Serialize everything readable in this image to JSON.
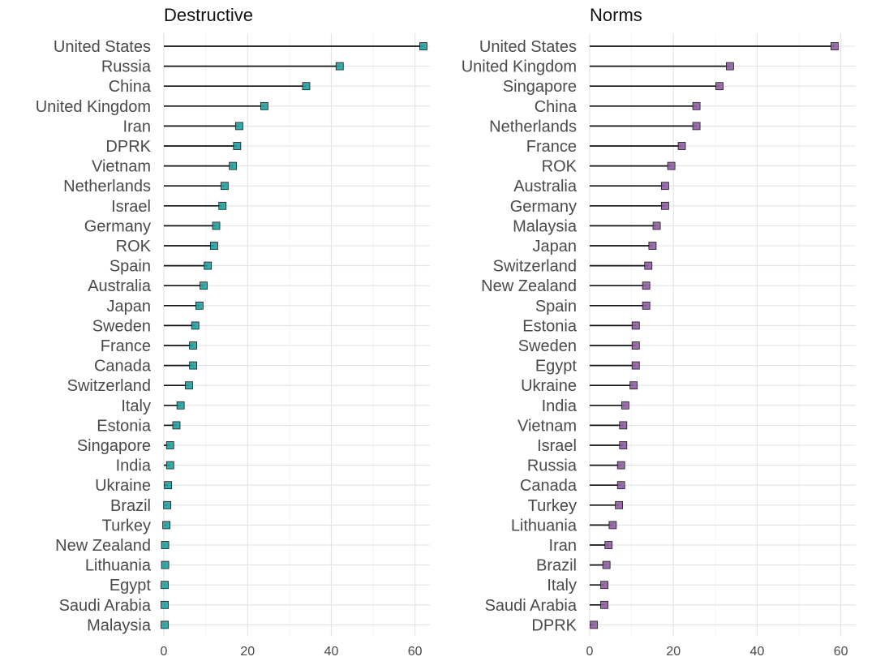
{
  "chart_data": [
    {
      "type": "lollipop",
      "title": "Destructive",
      "xlim": [
        0,
        62
      ],
      "xticks": [
        0,
        20,
        40,
        60
      ],
      "grid": true,
      "point_color": "#21a0a0",
      "categories": [
        "United States",
        "Russia",
        "China",
        "United Kingdom",
        "Iran",
        "DPRK",
        "Vietnam",
        "Netherlands",
        "Israel",
        "Germany",
        "ROK",
        "Spain",
        "Australia",
        "Japan",
        "Sweden",
        "France",
        "Canada",
        "Switzerland",
        "Italy",
        "Estonia",
        "Singapore",
        "India",
        "Ukraine",
        "Brazil",
        "Turkey",
        "New Zealand",
        "Lithuania",
        "Egypt",
        "Saudi Arabia",
        "Malaysia"
      ],
      "values": [
        62,
        42,
        34,
        24,
        18,
        17.5,
        16.5,
        14.5,
        14,
        12.5,
        12,
        10.5,
        9.5,
        8.5,
        7.5,
        7,
        7,
        6,
        4,
        3,
        1.5,
        1.5,
        1,
        0.8,
        0.6,
        0.3,
        0.3,
        0.2,
        0.2,
        0.2
      ]
    },
    {
      "type": "lollipop",
      "title": "Norms",
      "xlim": [
        0,
        62
      ],
      "xticks": [
        0,
        20,
        40,
        60
      ],
      "grid": true,
      "point_color": "#8e5ea2",
      "categories": [
        "United States",
        "United Kingdom",
        "Singapore",
        "China",
        "Netherlands",
        "France",
        "ROK",
        "Australia",
        "Germany",
        "Malaysia",
        "Japan",
        "Switzerland",
        "New Zealand",
        "Spain",
        "Estonia",
        "Sweden",
        "Egypt",
        "Ukraine",
        "India",
        "Vietnam",
        "Israel",
        "Russia",
        "Canada",
        "Turkey",
        "Lithuania",
        "Iran",
        "Brazil",
        "Italy",
        "Saudi Arabia",
        "DPRK"
      ],
      "values": [
        58.5,
        33.5,
        31,
        25.5,
        25.5,
        22,
        19.5,
        18,
        18,
        16,
        15,
        14,
        13.5,
        13.5,
        11,
        11,
        11,
        10.5,
        8.5,
        8,
        8,
        7.5,
        7.5,
        7,
        5.5,
        4.5,
        4,
        3.5,
        3.5,
        1
      ]
    }
  ]
}
